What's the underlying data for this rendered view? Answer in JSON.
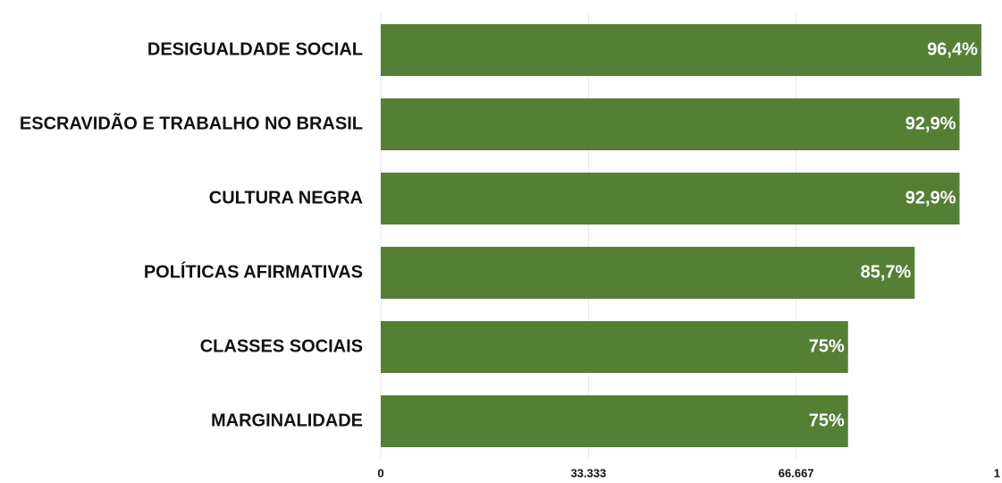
{
  "chart_data": {
    "type": "bar",
    "orientation": "horizontal",
    "categories": [
      "DESIGUALDADE SOCIAL",
      "ESCRAVIDÃO E TRABALHO NO BRASIL",
      "CULTURA NEGRA",
      "POLÍTICAS AFIRMATIVAS",
      "CLASSES SOCIAIS",
      "MARGINALIDADE"
    ],
    "values": [
      0.964,
      0.929,
      0.929,
      0.857,
      0.75,
      0.75
    ],
    "value_labels": [
      "96,4%",
      "92,9%",
      "92,9%",
      "85,7%",
      "75%",
      "75%"
    ],
    "color": "#557f35",
    "xlim": [
      0,
      1
    ],
    "xticks": [
      0,
      {
        "value": 0.33333,
        "label": "33.333"
      },
      {
        "value": 0.66667,
        "label": "66.667"
      },
      1
    ],
    "grid": true
  }
}
